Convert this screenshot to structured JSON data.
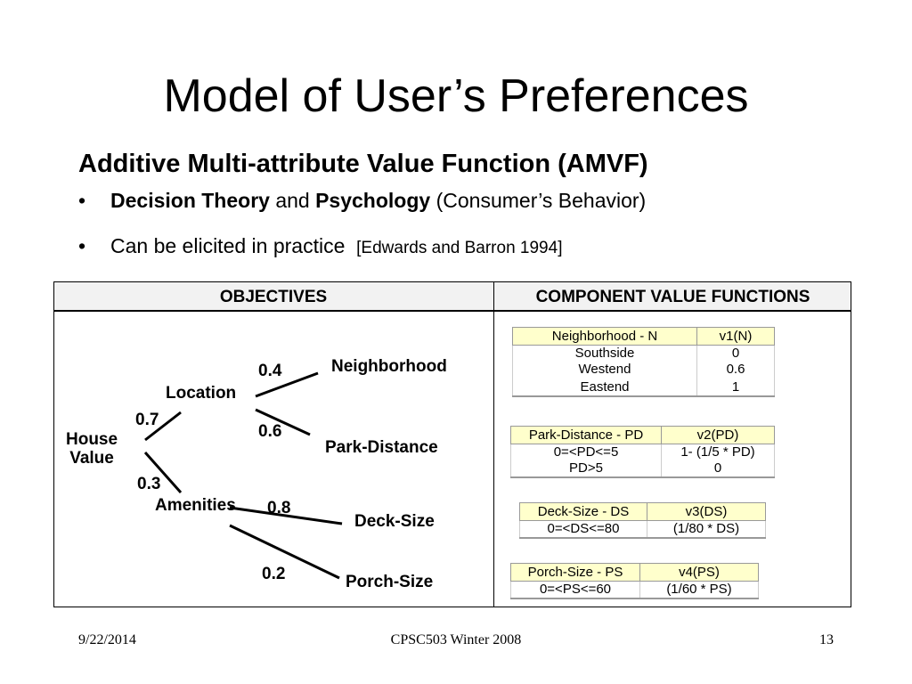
{
  "title": "Model of User’s Preferences",
  "subtitle": "Additive Multi-attribute Value Function (AMVF)",
  "bullets": [
    {
      "bold1": "Decision Theory",
      "mid": " and ",
      "bold2": "Psychology",
      "rest": " (Consumer’s Behavior)"
    },
    {
      "text": "Can be elicited in practice",
      "cite": "[Edwards and Barron 1994]"
    }
  ],
  "table": {
    "col1_header": "OBJECTIVES",
    "col2_header": "COMPONENT VALUE FUNCTIONS"
  },
  "tree": {
    "root": "House Value",
    "root_line1": "House",
    "root_line2": "Value",
    "location": "Location",
    "location_weight": "0.7",
    "amenities": "Amenities",
    "amenities_weight": "0.3",
    "neighborhood": "Neighborhood",
    "neighborhood_weight": "0.4",
    "park_distance": "Park-Distance",
    "park_distance_weight": "0.6",
    "deck_size": "Deck-Size",
    "deck_size_weight": "0.8",
    "porch_size": "Porch-Size",
    "porch_size_weight": "0.2"
  },
  "value_functions": [
    {
      "header": [
        "Neighborhood - N",
        "v1(N)"
      ],
      "rows": [
        [
          "Southside",
          "0"
        ],
        [
          "Westend",
          "0.6"
        ],
        [
          "Eastend",
          "1"
        ]
      ]
    },
    {
      "header": [
        "Park-Distance - PD",
        "v2(PD)"
      ],
      "rows": [
        [
          "0=<PD<=5",
          "1- (1/5 * PD)"
        ],
        [
          "PD>5",
          "0"
        ]
      ]
    },
    {
      "header": [
        "Deck-Size - DS",
        "v3(DS)"
      ],
      "rows": [
        [
          "0=<DS<=80",
          "(1/80 * DS)"
        ]
      ]
    },
    {
      "header": [
        "Porch-Size - PS",
        "v4(PS)"
      ],
      "rows": [
        [
          "0=<PS<=60",
          "(1/60 * PS)"
        ]
      ]
    }
  ],
  "footer": {
    "date": "9/22/2014",
    "course": "CPSC503 Winter 2008",
    "page": "13"
  },
  "colors": {
    "table_header_bg": "#f2f2f2",
    "value_header_bg": "#ffffcc"
  }
}
